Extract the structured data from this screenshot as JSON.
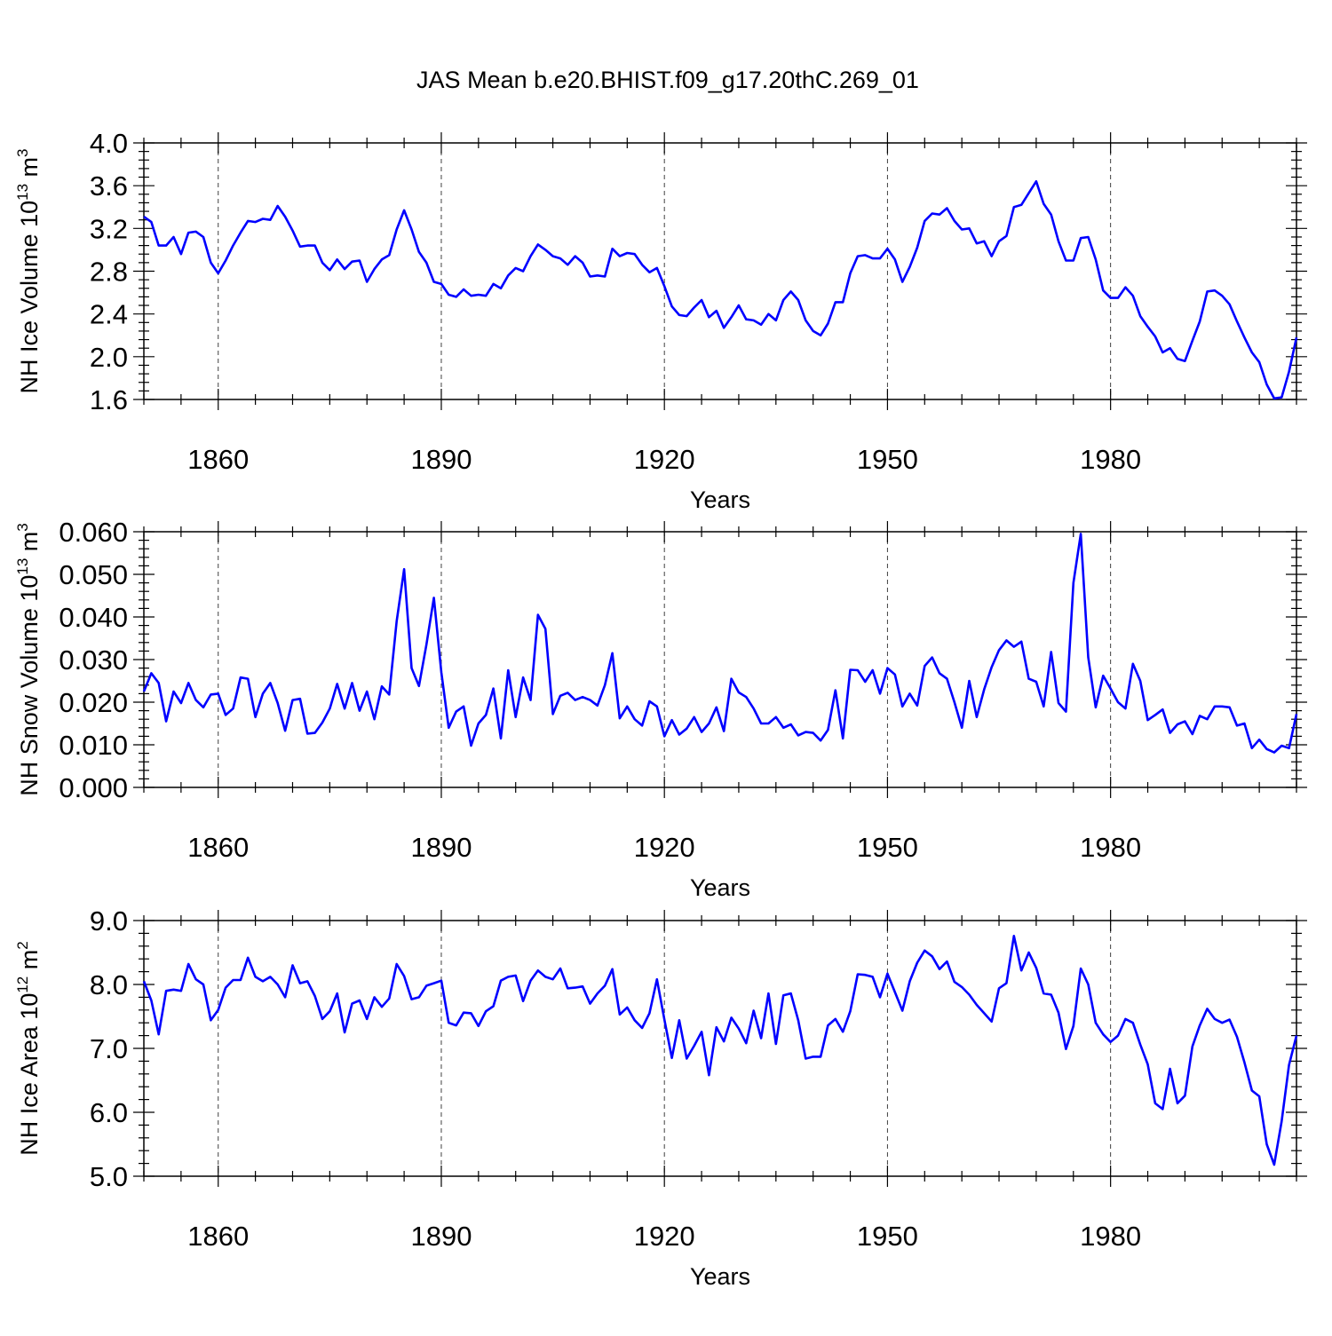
{
  "figure": {
    "title": "JAS Mean b.e20.BHIST.f09_g17.20thC.269_01",
    "line_color": "#0000ff"
  },
  "chart_data": [
    {
      "type": "line",
      "title": "JAS Mean b.e20.BHIST.f09_g17.20thC.269_01",
      "xlabel": "Years",
      "ylabel": "NH Ice Volume 10",
      "ylabel_exp": "13",
      "ylabel_unit": "m",
      "ylabel_unit_exp": "3",
      "xlim": [
        1850,
        2005
      ],
      "ylim": [
        1.6,
        4.0
      ],
      "xticks": [
        1860,
        1890,
        1920,
        1950,
        1980
      ],
      "xtick_labels": [
        "1860",
        "1890",
        "1920",
        "1950",
        "1980"
      ],
      "yticks": [
        1.6,
        2.0,
        2.4,
        2.8,
        3.2,
        3.6,
        4.0
      ],
      "ytick_labels": [
        "1.6",
        "2.0",
        "2.4",
        "2.8",
        "3.2",
        "3.6",
        "4.0"
      ],
      "grid": "vertical dashed at major x ticks",
      "series": [
        {
          "name": "NH Ice Volume",
          "x_start": 1850,
          "values": [
            3.31,
            3.26,
            3.04,
            3.04,
            3.12,
            2.96,
            3.16,
            3.17,
            3.12,
            2.88,
            2.78,
            2.9,
            3.04,
            3.16,
            3.27,
            3.26,
            3.29,
            3.28,
            3.41,
            3.31,
            3.18,
            3.03,
            3.04,
            3.04,
            2.88,
            2.81,
            2.91,
            2.82,
            2.89,
            2.9,
            2.7,
            2.82,
            2.91,
            2.95,
            3.19,
            3.37,
            3.19,
            2.98,
            2.88,
            2.7,
            2.68,
            2.58,
            2.56,
            2.63,
            2.57,
            2.58,
            2.57,
            2.68,
            2.64,
            2.76,
            2.83,
            2.8,
            2.94,
            3.05,
            3.0,
            2.94,
            2.92,
            2.86,
            2.94,
            2.88,
            2.75,
            2.76,
            2.75,
            3.01,
            2.94,
            2.97,
            2.96,
            2.86,
            2.79,
            2.83,
            2.66,
            2.47,
            2.39,
            2.38,
            2.46,
            2.53,
            2.37,
            2.43,
            2.27,
            2.37,
            2.48,
            2.35,
            2.34,
            2.3,
            2.4,
            2.34,
            2.53,
            2.61,
            2.53,
            2.34,
            2.24,
            2.2,
            2.31,
            2.51,
            2.51,
            2.78,
            2.94,
            2.95,
            2.92,
            2.92,
            3.01,
            2.91,
            2.7,
            2.84,
            3.02,
            3.27,
            3.34,
            3.33,
            3.39,
            3.27,
            3.19,
            3.2,
            3.06,
            3.08,
            2.94,
            3.08,
            3.13,
            3.4,
            3.42,
            3.53,
            3.64,
            3.43,
            3.33,
            3.08,
            2.9,
            2.9,
            3.11,
            3.12,
            2.91,
            2.62,
            2.55,
            2.55,
            2.65,
            2.57,
            2.38,
            2.28,
            2.19,
            2.04,
            2.08,
            1.98,
            1.96,
            2.15,
            2.33,
            2.61,
            2.62,
            2.57,
            2.49,
            2.33,
            2.18,
            2.04,
            1.95,
            1.74,
            1.61,
            1.62,
            1.86,
            2.18
          ]
        }
      ]
    },
    {
      "type": "line",
      "xlabel": "Years",
      "ylabel": "NH Snow Volume 10",
      "ylabel_exp": "13",
      "ylabel_unit": "m",
      "ylabel_unit_exp": "3",
      "xlim": [
        1850,
        2005
      ],
      "ylim": [
        0.0,
        0.06
      ],
      "xticks": [
        1860,
        1890,
        1920,
        1950,
        1980
      ],
      "xtick_labels": [
        "1860",
        "1890",
        "1920",
        "1950",
        "1980"
      ],
      "yticks": [
        0.0,
        0.01,
        0.02,
        0.03,
        0.04,
        0.05,
        0.06
      ],
      "ytick_labels": [
        "0.000",
        "0.010",
        "0.020",
        "0.030",
        "0.040",
        "0.050",
        "0.060"
      ],
      "grid": "vertical dashed at major x ticks",
      "series": [
        {
          "name": "NH Snow Volume",
          "x_start": 1850,
          "values": [
            0.0225,
            0.0268,
            0.0245,
            0.0155,
            0.0225,
            0.0198,
            0.0245,
            0.0205,
            0.0188,
            0.0218,
            0.022,
            0.017,
            0.0185,
            0.0258,
            0.0255,
            0.0165,
            0.022,
            0.0245,
            0.0198,
            0.0133,
            0.0205,
            0.0208,
            0.0126,
            0.0128,
            0.0152,
            0.0185,
            0.0243,
            0.0185,
            0.0245,
            0.018,
            0.0225,
            0.016,
            0.0237,
            0.0218,
            0.039,
            0.0512,
            0.028,
            0.0238,
            0.0335,
            0.0445,
            0.027,
            0.014,
            0.0178,
            0.019,
            0.0098,
            0.015,
            0.017,
            0.0232,
            0.0115,
            0.0275,
            0.0165,
            0.0258,
            0.0205,
            0.0405,
            0.0372,
            0.0172,
            0.0215,
            0.0222,
            0.0205,
            0.0212,
            0.0205,
            0.0192,
            0.024,
            0.0315,
            0.0162,
            0.019,
            0.016,
            0.0145,
            0.0202,
            0.019,
            0.012,
            0.0158,
            0.0124,
            0.0138,
            0.0165,
            0.013,
            0.015,
            0.0188,
            0.0132,
            0.0255,
            0.0223,
            0.0212,
            0.0185,
            0.015,
            0.015,
            0.0165,
            0.014,
            0.0148,
            0.0122,
            0.013,
            0.0128,
            0.011,
            0.0135,
            0.0228,
            0.0115,
            0.0276,
            0.0275,
            0.0248,
            0.0275,
            0.022,
            0.028,
            0.0265,
            0.019,
            0.022,
            0.0192,
            0.0285,
            0.0305,
            0.0268,
            0.0255,
            0.02,
            0.014,
            0.025,
            0.0165,
            0.023,
            0.0282,
            0.0322,
            0.0345,
            0.033,
            0.0342,
            0.0255,
            0.0248,
            0.019,
            0.0318,
            0.0198,
            0.0178,
            0.048,
            0.0595,
            0.0305,
            0.0188,
            0.0262,
            0.0232,
            0.02,
            0.0185,
            0.029,
            0.025,
            0.0158,
            0.017,
            0.0183,
            0.0128,
            0.0148,
            0.0155,
            0.0125,
            0.0168,
            0.016,
            0.019,
            0.019,
            0.0188,
            0.0145,
            0.015,
            0.0092,
            0.0112,
            0.009,
            0.0082,
            0.0098,
            0.0092,
            0.0172
          ]
        }
      ]
    },
    {
      "type": "line",
      "xlabel": "Years",
      "ylabel": "NH Ice Area 10",
      "ylabel_exp": "12",
      "ylabel_unit": "m",
      "ylabel_unit_exp": "2",
      "xlim": [
        1850,
        2005
      ],
      "ylim": [
        5.0,
        9.0
      ],
      "xticks": [
        1860,
        1890,
        1920,
        1950,
        1980
      ],
      "xtick_labels": [
        "1860",
        "1890",
        "1920",
        "1950",
        "1980"
      ],
      "yticks": [
        5.0,
        6.0,
        7.0,
        8.0,
        9.0
      ],
      "ytick_labels": [
        "5.0",
        "6.0",
        "7.0",
        "8.0",
        "9.0"
      ],
      "grid": "vertical dashed at major x ticks",
      "series": [
        {
          "name": "NH Ice Area",
          "x_start": 1850,
          "values": [
            8.05,
            7.75,
            7.22,
            7.9,
            7.92,
            7.9,
            8.32,
            8.08,
            8.0,
            7.44,
            7.6,
            7.95,
            8.07,
            8.07,
            8.42,
            8.12,
            8.05,
            8.12,
            8.0,
            7.8,
            8.3,
            8.02,
            8.05,
            7.82,
            7.46,
            7.58,
            7.86,
            7.25,
            7.7,
            7.75,
            7.46,
            7.8,
            7.65,
            7.78,
            8.32,
            8.13,
            7.77,
            7.8,
            7.98,
            8.02,
            8.06,
            7.4,
            7.36,
            7.56,
            7.55,
            7.35,
            7.58,
            7.66,
            8.06,
            8.12,
            8.14,
            7.74,
            8.06,
            8.22,
            8.12,
            8.08,
            8.25,
            7.94,
            7.95,
            7.97,
            7.7,
            7.86,
            7.98,
            8.24,
            7.53,
            7.64,
            7.44,
            7.32,
            7.55,
            8.08,
            7.45,
            6.85,
            7.44,
            6.84,
            7.04,
            7.26,
            6.58,
            7.33,
            7.11,
            7.48,
            7.31,
            7.08,
            7.59,
            7.16,
            7.86,
            7.07,
            7.83,
            7.86,
            7.44,
            6.84,
            6.87,
            6.87,
            7.36,
            7.46,
            7.26,
            7.58,
            8.16,
            8.15,
            8.12,
            7.8,
            8.17,
            7.88,
            7.59,
            8.05,
            8.34,
            8.53,
            8.44,
            8.24,
            8.36,
            8.04,
            7.96,
            7.84,
            7.68,
            7.55,
            7.42,
            7.94,
            8.02,
            8.76,
            8.22,
            8.5,
            8.26,
            7.86,
            7.84,
            7.56,
            6.99,
            7.35,
            8.25,
            8.0,
            7.4,
            7.22,
            7.1,
            7.2,
            7.46,
            7.4,
            7.06,
            6.75,
            6.14,
            6.05,
            6.68,
            6.14,
            6.26,
            7.03,
            7.36,
            7.62,
            7.46,
            7.4,
            7.45,
            7.18,
            6.78,
            6.34,
            6.25,
            5.5,
            5.18,
            5.86,
            6.74,
            7.2
          ]
        }
      ]
    }
  ]
}
